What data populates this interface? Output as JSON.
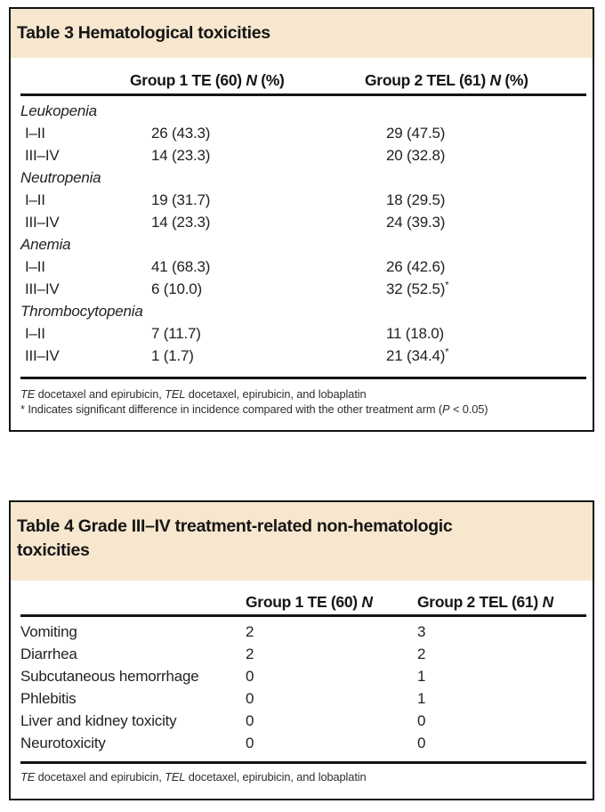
{
  "theme": {
    "band_color": "#f7e7ce",
    "border_color": "#141414",
    "text_color": "#222222"
  },
  "table3": {
    "title": "Table 3 Hematological toxicities",
    "header": {
      "col1": {
        "pre": "Group 1 TE (60) ",
        "n": "N",
        "post": " (%)"
      },
      "col2": {
        "pre": "Group 2 TEL (61) ",
        "n": "N",
        "post": " (%)"
      }
    },
    "rows": [
      {
        "label": "Leukopenia"
      },
      {
        "label": "I–II",
        "c1": "26 (43.3)",
        "c2": "29 (47.5)"
      },
      {
        "label": "III–IV",
        "c1": "14 (23.3)",
        "c2": "20 (32.8)"
      },
      {
        "label": "Neutropenia"
      },
      {
        "label": "I–II",
        "c1": "19 (31.7)",
        "c2": "18 (29.5)"
      },
      {
        "label": "III–IV",
        "c1": "14 (23.3)",
        "c2": "24 (39.3)"
      },
      {
        "label": "Anemia"
      },
      {
        "label": "I–II",
        "c1": "41 (68.3)",
        "c2": "26 (42.6)"
      },
      {
        "label": "III–IV",
        "c1": "6 (10.0)",
        "c2": "32 (52.5)",
        "c2_sup": "*"
      },
      {
        "label": "Thrombocytopenia"
      },
      {
        "label": "I–II",
        "c1": "7 (11.7)",
        "c2": "11 (18.0)"
      },
      {
        "label": "III–IV",
        "c1": "1 (1.7)",
        "c2": "21 (34.4)",
        "c2_sup": "*"
      }
    ],
    "footnote_abbrev": {
      "te": "TE",
      "mid": " docetaxel and epirubicin, ",
      "tel": "TEL",
      "end": " docetaxel, epirubicin, and lobaplatin"
    },
    "footnote_sig": {
      "pre": "* Indicates significant difference in incidence compared with the other treatment arm (",
      "p": "P",
      "post": " < 0.05)"
    }
  },
  "table4": {
    "title": "Table 4 Grade III–IV treatment-related non-hematologic\ntoxicities",
    "header": {
      "col1": {
        "pre": "Group 1 TE (60) ",
        "n": "N",
        "post": ""
      },
      "col2": {
        "pre": "Group 2 TEL (61) ",
        "n": "N",
        "post": ""
      }
    },
    "rows": [
      {
        "label": "Vomiting",
        "c1": "2",
        "c2": "3"
      },
      {
        "label": "Diarrhea",
        "c1": "2",
        "c2": "2"
      },
      {
        "label": "Subcutaneous hemorrhage",
        "c1": "0",
        "c2": "1"
      },
      {
        "label": "Phlebitis",
        "c1": "0",
        "c2": "1"
      },
      {
        "label": "Liver and kidney toxicity",
        "c1": "0",
        "c2": "0"
      },
      {
        "label": "Neurotoxicity",
        "c1": "0",
        "c2": "0"
      }
    ],
    "footnote_abbrev": {
      "te": "TE",
      "mid": " docetaxel and epirubicin, ",
      "tel": "TEL",
      "end": " docetaxel, epirubicin, and lobaplatin"
    }
  }
}
